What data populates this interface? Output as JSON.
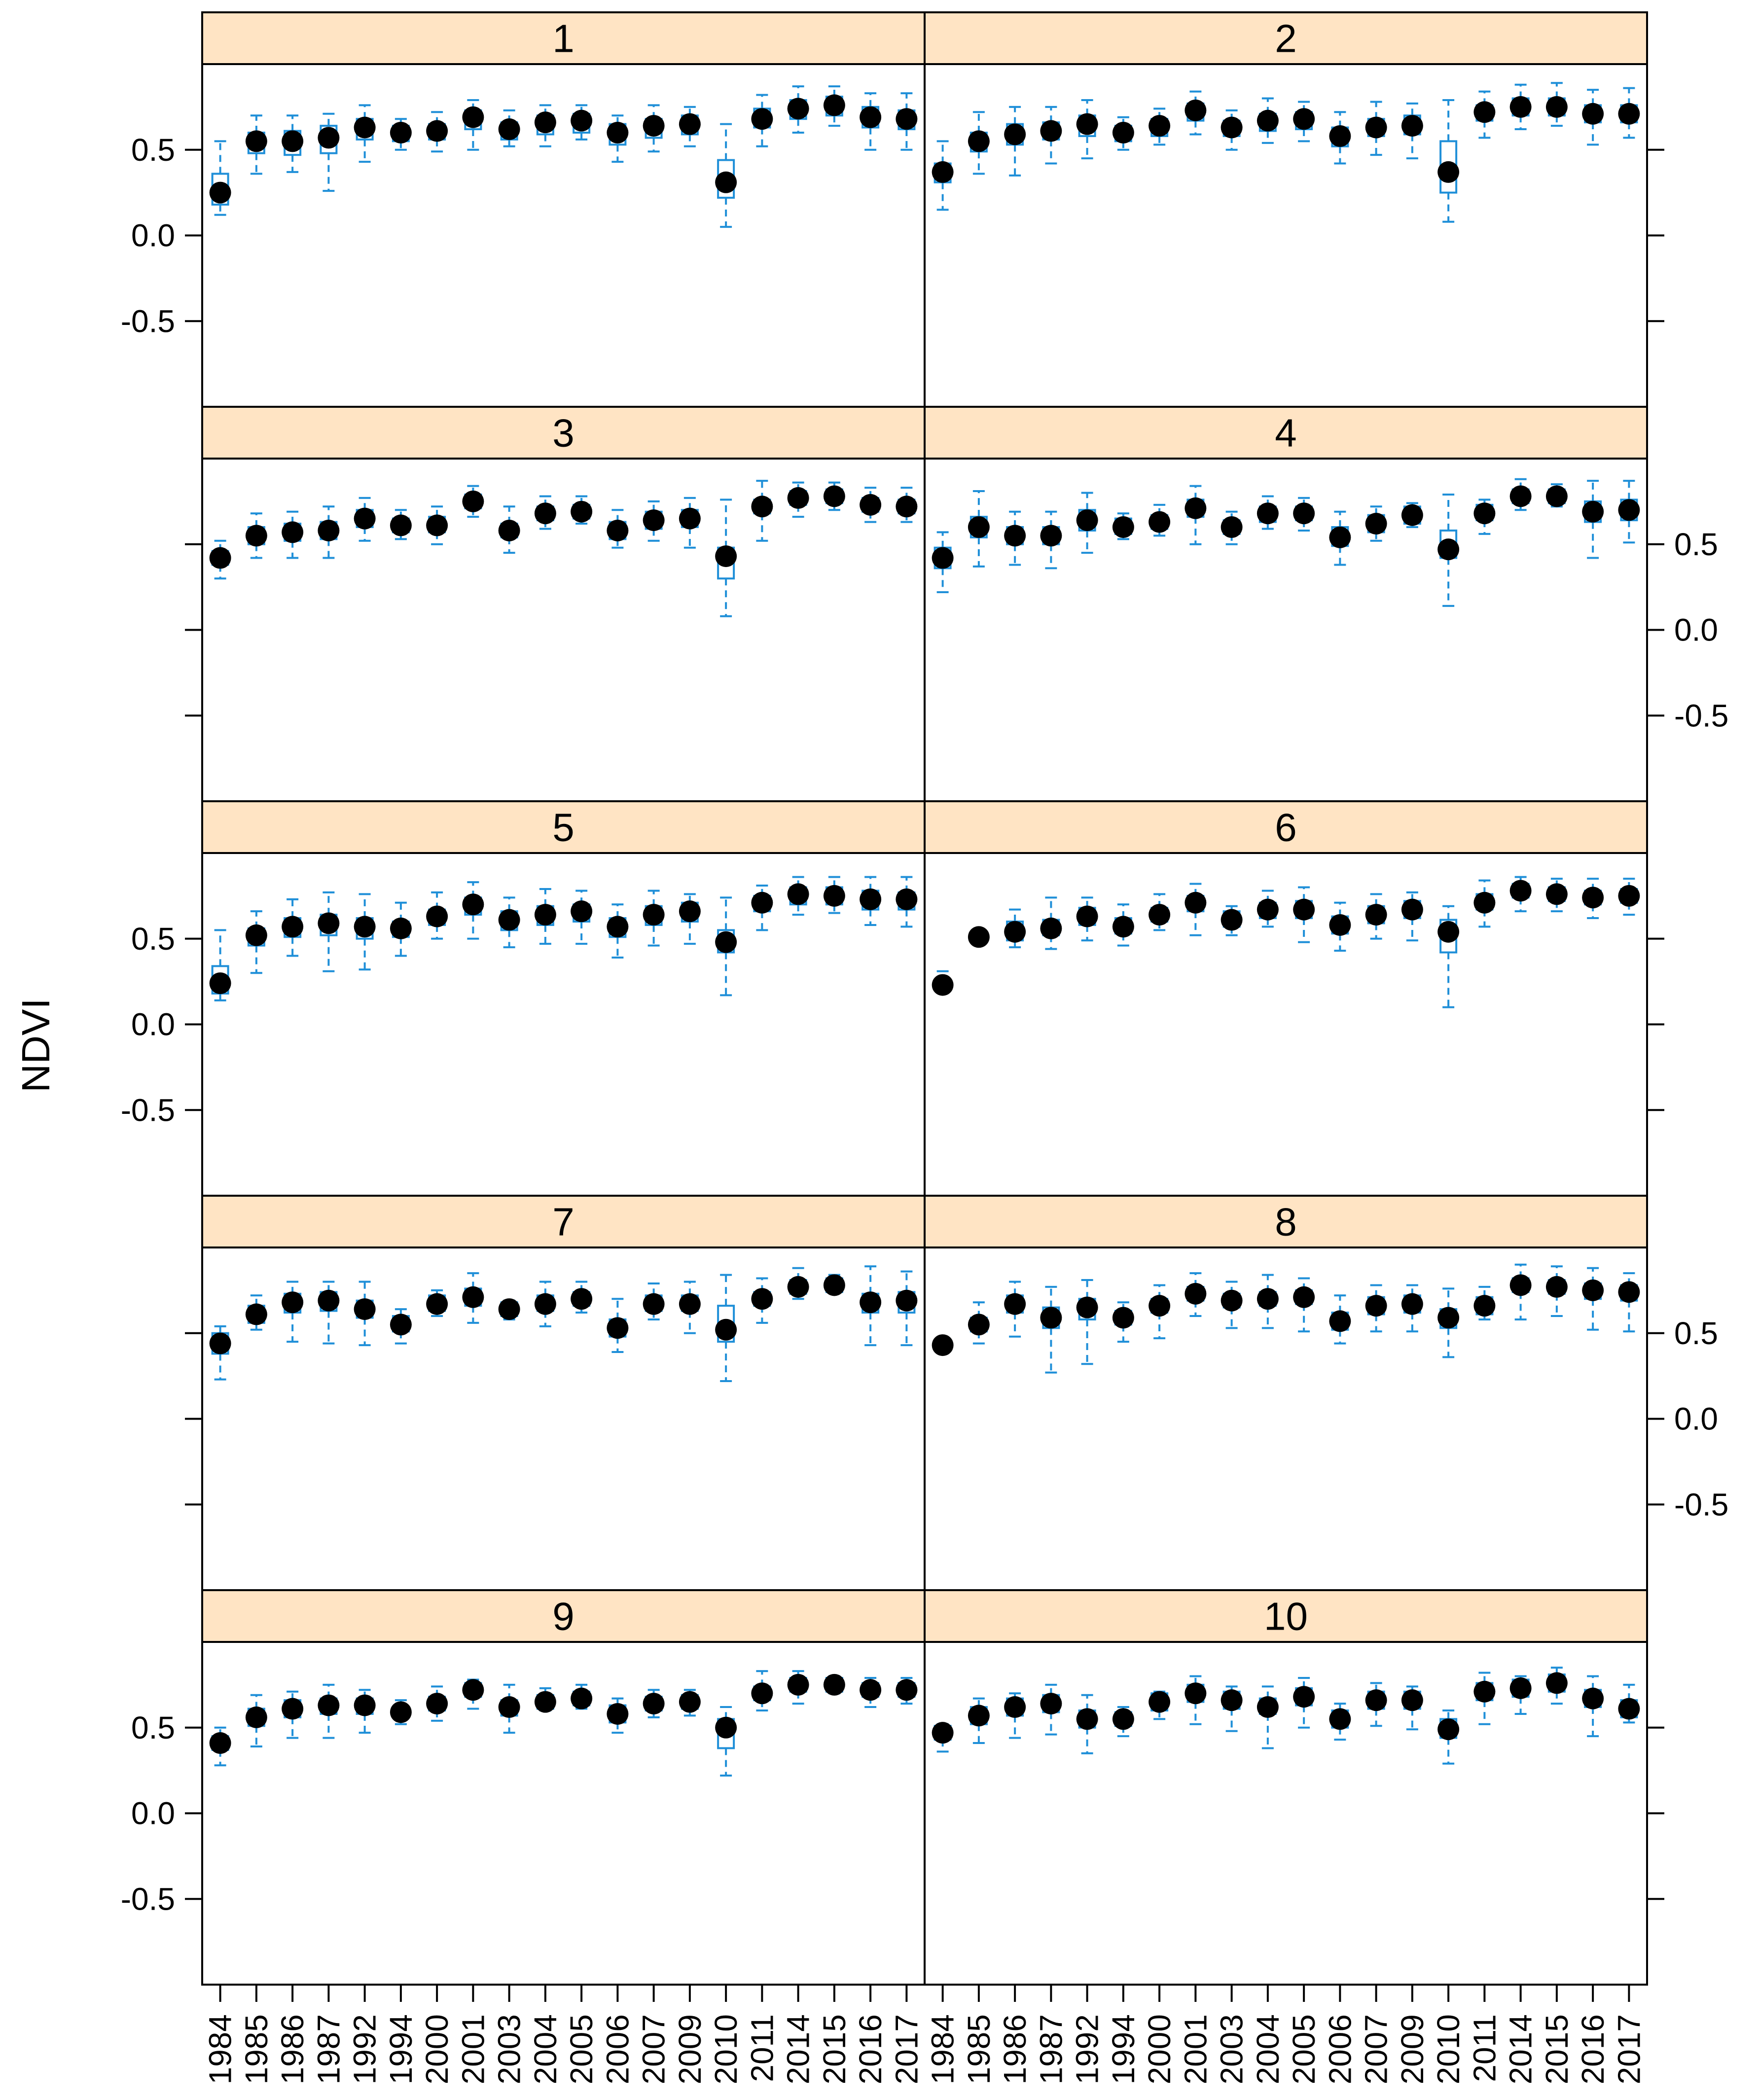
{
  "colors": {
    "strip_fill": "#FFE4C4",
    "box_color": "#1F8FD8",
    "point_color": "#000000",
    "frame_color": "#000000"
  },
  "chart_data": {
    "type": "box",
    "layout": "lattice 2 columns x 5 rows",
    "title": "",
    "xlabel": "",
    "ylabel": "NDVI",
    "ylim": [
      -1.0,
      1.0
    ],
    "yticks": [
      -0.5,
      0.0,
      0.5
    ],
    "ytick_labels": [
      "-0.5",
      "0.0",
      "0.5"
    ],
    "categories": [
      "1984",
      "1985",
      "1986",
      "1987",
      "1992",
      "1994",
      "2000",
      "2001",
      "2003",
      "2004",
      "2005",
      "2006",
      "2007",
      "2009",
      "2010",
      "2011",
      "2014",
      "2015",
      "2016",
      "2017"
    ],
    "panels": [
      {
        "label": "1",
        "median": [
          0.25,
          0.55,
          0.55,
          0.57,
          0.63,
          0.6,
          0.61,
          0.69,
          0.62,
          0.66,
          0.67,
          0.6,
          0.64,
          0.65,
          0.31,
          0.68,
          0.74,
          0.76,
          0.69,
          0.68
        ],
        "q1": [
          0.18,
          0.48,
          0.47,
          0.48,
          0.56,
          0.55,
          0.56,
          0.62,
          0.56,
          0.59,
          0.6,
          0.53,
          0.57,
          0.59,
          0.22,
          0.63,
          0.68,
          0.7,
          0.63,
          0.62
        ],
        "q3": [
          0.36,
          0.6,
          0.61,
          0.64,
          0.68,
          0.64,
          0.65,
          0.73,
          0.66,
          0.7,
          0.71,
          0.65,
          0.68,
          0.7,
          0.44,
          0.74,
          0.79,
          0.81,
          0.75,
          0.73
        ],
        "whisker_low": [
          0.12,
          0.36,
          0.37,
          0.26,
          0.43,
          0.5,
          0.49,
          0.5,
          0.52,
          0.52,
          0.56,
          0.43,
          0.49,
          0.52,
          0.05,
          0.52,
          0.6,
          0.64,
          0.5,
          0.5
        ],
        "whisker_high": [
          0.55,
          0.7,
          0.7,
          0.71,
          0.76,
          0.68,
          0.72,
          0.79,
          0.73,
          0.76,
          0.76,
          0.7,
          0.76,
          0.75,
          0.65,
          0.82,
          0.87,
          0.87,
          0.83,
          0.83
        ]
      },
      {
        "label": "2",
        "median": [
          0.37,
          0.55,
          0.59,
          0.61,
          0.65,
          0.6,
          0.64,
          0.73,
          0.63,
          0.67,
          0.68,
          0.58,
          0.63,
          0.64,
          0.37,
          0.72,
          0.75,
          0.75,
          0.71,
          0.71
        ],
        "q1": [
          0.31,
          0.49,
          0.53,
          0.56,
          0.58,
          0.55,
          0.58,
          0.67,
          0.58,
          0.61,
          0.62,
          0.52,
          0.58,
          0.59,
          0.25,
          0.67,
          0.7,
          0.7,
          0.66,
          0.66
        ],
        "q3": [
          0.42,
          0.6,
          0.65,
          0.66,
          0.7,
          0.64,
          0.68,
          0.77,
          0.67,
          0.71,
          0.72,
          0.63,
          0.68,
          0.7,
          0.55,
          0.76,
          0.8,
          0.8,
          0.76,
          0.76
        ],
        "whisker_low": [
          0.15,
          0.36,
          0.35,
          0.42,
          0.45,
          0.5,
          0.53,
          0.59,
          0.5,
          0.54,
          0.55,
          0.42,
          0.47,
          0.45,
          0.08,
          0.57,
          0.62,
          0.64,
          0.53,
          0.57
        ],
        "whisker_high": [
          0.55,
          0.72,
          0.75,
          0.75,
          0.79,
          0.69,
          0.74,
          0.84,
          0.73,
          0.8,
          0.78,
          0.72,
          0.78,
          0.77,
          0.79,
          0.84,
          0.88,
          0.89,
          0.85,
          0.86
        ]
      },
      {
        "label": "3",
        "median": [
          0.42,
          0.55,
          0.57,
          0.58,
          0.65,
          0.61,
          0.61,
          0.75,
          0.58,
          0.68,
          0.69,
          0.58,
          0.64,
          0.65,
          0.43,
          0.72,
          0.77,
          0.78,
          0.73,
          0.72
        ],
        "q1": [
          0.38,
          0.5,
          0.52,
          0.53,
          0.6,
          0.57,
          0.57,
          0.71,
          0.54,
          0.64,
          0.65,
          0.53,
          0.59,
          0.6,
          0.3,
          0.68,
          0.73,
          0.74,
          0.69,
          0.68
        ],
        "q3": [
          0.46,
          0.6,
          0.62,
          0.63,
          0.7,
          0.65,
          0.66,
          0.79,
          0.62,
          0.72,
          0.73,
          0.63,
          0.69,
          0.7,
          0.48,
          0.76,
          0.81,
          0.82,
          0.77,
          0.76
        ],
        "whisker_low": [
          0.3,
          0.42,
          0.42,
          0.42,
          0.52,
          0.53,
          0.5,
          0.66,
          0.45,
          0.59,
          0.62,
          0.48,
          0.52,
          0.48,
          0.08,
          0.52,
          0.66,
          0.7,
          0.63,
          0.63
        ],
        "whisker_high": [
          0.52,
          0.68,
          0.69,
          0.72,
          0.77,
          0.7,
          0.72,
          0.84,
          0.72,
          0.78,
          0.78,
          0.7,
          0.75,
          0.77,
          0.76,
          0.87,
          0.86,
          0.86,
          0.83,
          0.83
        ]
      },
      {
        "label": "4",
        "median": [
          0.42,
          0.6,
          0.55,
          0.55,
          0.64,
          0.6,
          0.63,
          0.71,
          0.6,
          0.68,
          0.68,
          0.54,
          0.62,
          0.67,
          0.47,
          0.68,
          0.78,
          0.78,
          0.69,
          0.7
        ],
        "q1": [
          0.36,
          0.54,
          0.5,
          0.5,
          0.58,
          0.56,
          0.59,
          0.66,
          0.56,
          0.63,
          0.64,
          0.49,
          0.57,
          0.62,
          0.42,
          0.64,
          0.74,
          0.74,
          0.63,
          0.64
        ],
        "q3": [
          0.48,
          0.66,
          0.6,
          0.6,
          0.7,
          0.65,
          0.67,
          0.76,
          0.64,
          0.72,
          0.72,
          0.6,
          0.67,
          0.72,
          0.58,
          0.73,
          0.82,
          0.82,
          0.75,
          0.76
        ],
        "whisker_low": [
          0.22,
          0.37,
          0.38,
          0.36,
          0.45,
          0.53,
          0.55,
          0.5,
          0.5,
          0.59,
          0.58,
          0.38,
          0.52,
          0.6,
          0.14,
          0.56,
          0.7,
          0.72,
          0.42,
          0.51
        ],
        "whisker_high": [
          0.57,
          0.81,
          0.69,
          0.69,
          0.8,
          0.68,
          0.73,
          0.84,
          0.69,
          0.78,
          0.77,
          0.69,
          0.72,
          0.74,
          0.79,
          0.76,
          0.88,
          0.85,
          0.87,
          0.87
        ]
      },
      {
        "label": "5",
        "median": [
          0.24,
          0.52,
          0.57,
          0.59,
          0.57,
          0.56,
          0.63,
          0.7,
          0.61,
          0.64,
          0.66,
          0.57,
          0.64,
          0.66,
          0.48,
          0.71,
          0.76,
          0.75,
          0.73,
          0.73
        ],
        "q1": [
          0.18,
          0.46,
          0.51,
          0.52,
          0.5,
          0.51,
          0.58,
          0.64,
          0.55,
          0.58,
          0.6,
          0.51,
          0.58,
          0.6,
          0.42,
          0.66,
          0.7,
          0.7,
          0.67,
          0.67
        ],
        "q3": [
          0.34,
          0.56,
          0.62,
          0.64,
          0.62,
          0.6,
          0.67,
          0.74,
          0.66,
          0.69,
          0.7,
          0.62,
          0.69,
          0.71,
          0.55,
          0.75,
          0.8,
          0.8,
          0.78,
          0.77
        ],
        "whisker_low": [
          0.14,
          0.3,
          0.4,
          0.31,
          0.32,
          0.4,
          0.5,
          0.5,
          0.45,
          0.47,
          0.47,
          0.39,
          0.46,
          0.47,
          0.17,
          0.55,
          0.64,
          0.65,
          0.58,
          0.57
        ],
        "whisker_high": [
          0.55,
          0.66,
          0.73,
          0.77,
          0.76,
          0.71,
          0.77,
          0.83,
          0.74,
          0.79,
          0.78,
          0.7,
          0.78,
          0.76,
          0.74,
          0.81,
          0.86,
          0.86,
          0.86,
          0.86
        ]
      },
      {
        "label": "6",
        "median": [
          0.23,
          0.51,
          0.54,
          0.56,
          0.63,
          0.57,
          0.64,
          0.71,
          0.61,
          0.67,
          0.67,
          0.58,
          0.64,
          0.67,
          0.54,
          0.71,
          0.78,
          0.76,
          0.74,
          0.75
        ],
        "q1": [
          0.21,
          0.49,
          0.49,
          0.52,
          0.58,
          0.53,
          0.6,
          0.66,
          0.57,
          0.62,
          0.62,
          0.53,
          0.59,
          0.62,
          0.42,
          0.67,
          0.74,
          0.72,
          0.7,
          0.71
        ],
        "q3": [
          0.25,
          0.53,
          0.6,
          0.61,
          0.68,
          0.62,
          0.68,
          0.75,
          0.66,
          0.71,
          0.72,
          0.63,
          0.69,
          0.72,
          0.61,
          0.76,
          0.82,
          0.8,
          0.78,
          0.79
        ],
        "whisker_low": [
          0.2,
          0.48,
          0.45,
          0.44,
          0.49,
          0.46,
          0.55,
          0.52,
          0.52,
          0.57,
          0.48,
          0.43,
          0.5,
          0.49,
          0.1,
          0.57,
          0.66,
          0.66,
          0.62,
          0.64
        ],
        "whisker_high": [
          0.31,
          0.52,
          0.67,
          0.74,
          0.74,
          0.7,
          0.76,
          0.82,
          0.69,
          0.78,
          0.8,
          0.71,
          0.76,
          0.77,
          0.69,
          0.84,
          0.86,
          0.85,
          0.85,
          0.85
        ]
      },
      {
        "label": "7",
        "median": [
          0.44,
          0.61,
          0.68,
          0.69,
          0.64,
          0.55,
          0.67,
          0.71,
          0.64,
          0.67,
          0.7,
          0.53,
          0.67,
          0.67,
          0.52,
          0.7,
          0.77,
          0.78,
          0.68,
          0.69
        ],
        "q1": [
          0.38,
          0.56,
          0.62,
          0.63,
          0.59,
          0.51,
          0.63,
          0.66,
          0.6,
          0.63,
          0.66,
          0.48,
          0.63,
          0.63,
          0.45,
          0.66,
          0.73,
          0.74,
          0.62,
          0.62
        ],
        "q3": [
          0.5,
          0.66,
          0.73,
          0.74,
          0.69,
          0.6,
          0.72,
          0.76,
          0.68,
          0.72,
          0.74,
          0.58,
          0.72,
          0.72,
          0.66,
          0.74,
          0.81,
          0.82,
          0.73,
          0.74
        ],
        "whisker_low": [
          0.23,
          0.52,
          0.45,
          0.44,
          0.43,
          0.44,
          0.6,
          0.56,
          0.58,
          0.54,
          0.62,
          0.39,
          0.58,
          0.5,
          0.22,
          0.56,
          0.7,
          0.74,
          0.43,
          0.43
        ],
        "whisker_high": [
          0.54,
          0.72,
          0.8,
          0.8,
          0.8,
          0.64,
          0.75,
          0.85,
          0.69,
          0.8,
          0.8,
          0.7,
          0.79,
          0.8,
          0.84,
          0.82,
          0.88,
          0.84,
          0.89,
          0.86
        ]
      },
      {
        "label": "8",
        "median": [
          0.43,
          0.55,
          0.67,
          0.59,
          0.65,
          0.59,
          0.66,
          0.73,
          0.69,
          0.7,
          0.71,
          0.57,
          0.66,
          0.67,
          0.59,
          0.66,
          0.78,
          0.77,
          0.75,
          0.74
        ],
        "q1": [
          0.4,
          0.51,
          0.62,
          0.53,
          0.58,
          0.55,
          0.62,
          0.69,
          0.65,
          0.66,
          0.67,
          0.52,
          0.61,
          0.62,
          0.53,
          0.61,
          0.74,
          0.73,
          0.7,
          0.69
        ],
        "q3": [
          0.46,
          0.59,
          0.72,
          0.65,
          0.7,
          0.63,
          0.7,
          0.77,
          0.73,
          0.74,
          0.75,
          0.62,
          0.71,
          0.72,
          0.64,
          0.71,
          0.82,
          0.81,
          0.79,
          0.78
        ],
        "whisker_low": [
          0.39,
          0.44,
          0.48,
          0.27,
          0.32,
          0.45,
          0.47,
          0.6,
          0.53,
          0.53,
          0.51,
          0.44,
          0.51,
          0.51,
          0.36,
          0.58,
          0.58,
          0.6,
          0.52,
          0.51
        ],
        "whisker_high": [
          0.47,
          0.68,
          0.8,
          0.77,
          0.81,
          0.68,
          0.78,
          0.85,
          0.8,
          0.84,
          0.82,
          0.72,
          0.78,
          0.78,
          0.76,
          0.77,
          0.9,
          0.89,
          0.88,
          0.85
        ]
      },
      {
        "label": "9",
        "median": [
          0.41,
          0.56,
          0.61,
          0.63,
          0.63,
          0.59,
          0.64,
          0.72,
          0.62,
          0.65,
          0.67,
          0.58,
          0.64,
          0.65,
          0.5,
          0.7,
          0.75,
          0.75,
          0.72,
          0.72
        ],
        "q1": [
          0.37,
          0.51,
          0.56,
          0.58,
          0.58,
          0.56,
          0.6,
          0.68,
          0.57,
          0.61,
          0.63,
          0.53,
          0.6,
          0.61,
          0.38,
          0.66,
          0.71,
          0.71,
          0.68,
          0.68
        ],
        "q3": [
          0.45,
          0.61,
          0.66,
          0.67,
          0.67,
          0.62,
          0.68,
          0.76,
          0.66,
          0.69,
          0.71,
          0.63,
          0.68,
          0.69,
          0.55,
          0.74,
          0.79,
          0.79,
          0.76,
          0.76
        ],
        "whisker_low": [
          0.28,
          0.39,
          0.44,
          0.44,
          0.47,
          0.52,
          0.54,
          0.61,
          0.47,
          0.6,
          0.61,
          0.47,
          0.56,
          0.57,
          0.22,
          0.6,
          0.64,
          0.7,
          0.62,
          0.64
        ],
        "whisker_high": [
          0.5,
          0.69,
          0.71,
          0.75,
          0.72,
          0.66,
          0.74,
          0.78,
          0.75,
          0.73,
          0.75,
          0.67,
          0.72,
          0.72,
          0.62,
          0.83,
          0.83,
          0.8,
          0.79,
          0.79
        ]
      },
      {
        "label": "10",
        "median": [
          0.47,
          0.57,
          0.62,
          0.64,
          0.55,
          0.55,
          0.65,
          0.7,
          0.66,
          0.62,
          0.68,
          0.55,
          0.66,
          0.66,
          0.49,
          0.71,
          0.73,
          0.76,
          0.67,
          0.61
        ],
        "q1": [
          0.43,
          0.52,
          0.57,
          0.59,
          0.5,
          0.51,
          0.6,
          0.65,
          0.61,
          0.58,
          0.63,
          0.5,
          0.61,
          0.61,
          0.44,
          0.66,
          0.68,
          0.71,
          0.62,
          0.56
        ],
        "q3": [
          0.51,
          0.62,
          0.67,
          0.69,
          0.6,
          0.59,
          0.7,
          0.75,
          0.71,
          0.67,
          0.73,
          0.6,
          0.71,
          0.71,
          0.55,
          0.76,
          0.78,
          0.81,
          0.72,
          0.66
        ],
        "whisker_low": [
          0.36,
          0.41,
          0.44,
          0.46,
          0.35,
          0.45,
          0.55,
          0.52,
          0.48,
          0.38,
          0.5,
          0.43,
          0.51,
          0.49,
          0.29,
          0.52,
          0.58,
          0.64,
          0.45,
          0.53
        ],
        "whisker_high": [
          0.52,
          0.67,
          0.7,
          0.75,
          0.69,
          0.62,
          0.71,
          0.8,
          0.74,
          0.74,
          0.79,
          0.64,
          0.76,
          0.74,
          0.6,
          0.82,
          0.8,
          0.85,
          0.8,
          0.75
        ]
      }
    ]
  }
}
